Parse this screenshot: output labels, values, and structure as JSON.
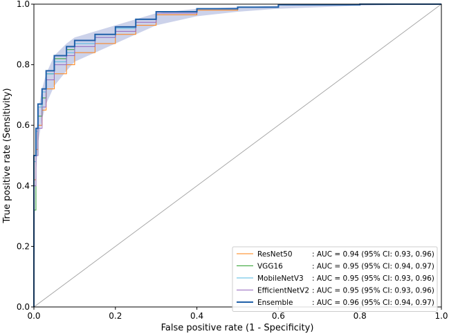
{
  "chart_data": {
    "type": "line",
    "title": "",
    "xlabel": "False positive rate (1 - Specificity)",
    "ylabel": "True positive rate (Sensitivity)",
    "xlim": [
      0.0,
      1.0
    ],
    "ylim": [
      0.0,
      1.0
    ],
    "xticks": [
      "0.0",
      "0.2",
      "0.4",
      "0.6",
      "0.8",
      "1.0"
    ],
    "yticks": [
      "0.0",
      "0.2",
      "0.4",
      "0.6",
      "0.8",
      "1.0"
    ],
    "grid": false,
    "legend_position": "bottom-right",
    "chance_line": {
      "x": [
        0,
        1
      ],
      "y": [
        0,
        1
      ],
      "color": "#a0a0a0"
    },
    "confidence_band": {
      "series": "Ensemble",
      "color": "#aab4dc",
      "x": [
        0,
        0.005,
        0.01,
        0.02,
        0.03,
        0.05,
        0.08,
        0.1,
        0.15,
        0.2,
        0.25,
        0.3,
        0.4,
        0.5,
        0.6,
        0.8,
        1.0
      ],
      "lower": [
        0.0,
        0.44,
        0.54,
        0.62,
        0.67,
        0.73,
        0.78,
        0.81,
        0.84,
        0.87,
        0.9,
        0.93,
        0.96,
        0.975,
        0.985,
        0.995,
        1.0
      ],
      "upper": [
        0.0,
        0.55,
        0.64,
        0.72,
        0.77,
        0.83,
        0.87,
        0.89,
        0.91,
        0.93,
        0.95,
        0.97,
        0.985,
        0.99,
        0.995,
        1.0,
        1.0
      ]
    },
    "series": [
      {
        "name": "ResNet50",
        "legend_text": ": AUC = 0.94 (95% CI: 0.93, 0.96)",
        "color": "#ff7f0e",
        "line_width": 1,
        "x": [
          0,
          0.005,
          0.01,
          0.02,
          0.03,
          0.05,
          0.08,
          0.1,
          0.15,
          0.2,
          0.25,
          0.3,
          0.4,
          0.5,
          0.6,
          0.8,
          1.0
        ],
        "y": [
          0.0,
          0.42,
          0.52,
          0.6,
          0.65,
          0.72,
          0.77,
          0.8,
          0.84,
          0.87,
          0.9,
          0.93,
          0.965,
          0.98,
          0.99,
          0.998,
          1.0
        ]
      },
      {
        "name": "VGG16",
        "legend_text": ": AUC = 0.95 (95% CI: 0.94, 0.97)",
        "color": "#2ca02c",
        "line_width": 1,
        "x": [
          0,
          0.005,
          0.01,
          0.02,
          0.03,
          0.05,
          0.08,
          0.1,
          0.15,
          0.2,
          0.25,
          0.3,
          0.4,
          0.5,
          0.6,
          0.8,
          1.0
        ],
        "y": [
          0.0,
          0.32,
          0.5,
          0.63,
          0.69,
          0.77,
          0.82,
          0.85,
          0.88,
          0.9,
          0.92,
          0.95,
          0.975,
          0.985,
          0.99,
          0.998,
          1.0
        ]
      },
      {
        "name": "MobileNetV3",
        "legend_text": ": AUC = 0.95 (95% CI: 0.93, 0.96)",
        "color": "#4fb8e0",
        "line_width": 1,
        "x": [
          0,
          0.005,
          0.01,
          0.02,
          0.03,
          0.05,
          0.08,
          0.1,
          0.15,
          0.2,
          0.25,
          0.3,
          0.4,
          0.5,
          0.6,
          0.8,
          1.0
        ],
        "y": [
          0.0,
          0.48,
          0.58,
          0.66,
          0.71,
          0.77,
          0.81,
          0.84,
          0.87,
          0.89,
          0.92,
          0.95,
          0.975,
          0.985,
          0.99,
          0.998,
          1.0
        ]
      },
      {
        "name": "EfficientNetV2",
        "legend_text": ": AUC = 0.95 (95% CI: 0.93, 0.96)",
        "color": "#9467bd",
        "line_width": 1,
        "x": [
          0,
          0.005,
          0.01,
          0.02,
          0.03,
          0.05,
          0.08,
          0.1,
          0.15,
          0.2,
          0.25,
          0.3,
          0.4,
          0.5,
          0.6,
          0.8,
          1.0
        ],
        "y": [
          0.0,
          0.4,
          0.5,
          0.59,
          0.66,
          0.75,
          0.8,
          0.83,
          0.86,
          0.89,
          0.91,
          0.94,
          0.97,
          0.985,
          0.99,
          0.998,
          1.0
        ]
      },
      {
        "name": "Ensemble",
        "legend_text": ": AUC = 0.96 (95% CI: 0.94, 0.97)",
        "color": "#1f5fa8",
        "line_width": 2,
        "x": [
          0,
          0.005,
          0.01,
          0.02,
          0.03,
          0.05,
          0.08,
          0.1,
          0.15,
          0.2,
          0.25,
          0.3,
          0.4,
          0.5,
          0.6,
          0.8,
          1.0
        ],
        "y": [
          0.0,
          0.5,
          0.59,
          0.67,
          0.72,
          0.78,
          0.83,
          0.86,
          0.88,
          0.9,
          0.925,
          0.95,
          0.975,
          0.985,
          0.99,
          0.998,
          1.0
        ]
      }
    ]
  }
}
